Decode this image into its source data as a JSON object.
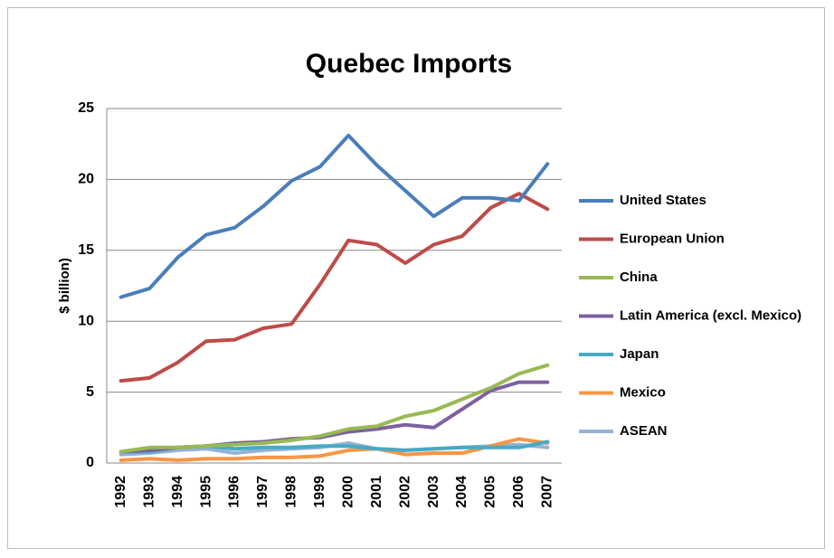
{
  "chart_data": {
    "type": "line",
    "title": "Quebec Imports",
    "y_label": "$ billion)",
    "categories": [
      "1992",
      "1993",
      "1994",
      "1995",
      "1996",
      "1997",
      "1998",
      "1999",
      "2000",
      "2001",
      "2002",
      "2003",
      "2004",
      "2005",
      "2006",
      "2007"
    ],
    "series": [
      {
        "name": "United States",
        "color": "#4a7ebb",
        "values": [
          11.7,
          12.3,
          14.5,
          16.1,
          16.6,
          18.1,
          19.9,
          20.9,
          23.1,
          21.0,
          19.2,
          17.4,
          18.7,
          18.7,
          18.5,
          21.1
        ]
      },
      {
        "name": "European Union",
        "color": "#be4b48",
        "values": [
          5.8,
          6.0,
          7.1,
          8.6,
          8.7,
          9.5,
          9.8,
          12.6,
          15.7,
          15.4,
          14.1,
          15.4,
          16.0,
          18.0,
          19.0,
          17.9
        ]
      },
      {
        "name": "China",
        "color": "#98b954",
        "values": [
          0.8,
          1.1,
          1.1,
          1.2,
          1.3,
          1.4,
          1.6,
          1.9,
          2.4,
          2.6,
          3.3,
          3.7,
          4.5,
          5.3,
          6.3,
          6.9
        ]
      },
      {
        "name": "Latin America (excl. Mexico)",
        "color": "#7d60a0",
        "values": [
          0.8,
          0.9,
          1.1,
          1.2,
          1.4,
          1.5,
          1.7,
          1.8,
          2.2,
          2.4,
          2.7,
          2.5,
          3.8,
          5.1,
          5.7,
          5.7
        ]
      },
      {
        "name": "Japan",
        "color": "#46aac5",
        "values": [
          0.8,
          0.8,
          1.1,
          1.2,
          1.0,
          1.1,
          1.1,
          1.2,
          1.2,
          1.0,
          0.9,
          1.0,
          1.1,
          1.1,
          1.1,
          1.5
        ]
      },
      {
        "name": "Mexico",
        "color": "#f79646",
        "values": [
          0.2,
          0.3,
          0.2,
          0.3,
          0.3,
          0.4,
          0.4,
          0.5,
          0.9,
          1.0,
          0.6,
          0.7,
          0.7,
          1.2,
          1.7,
          1.4
        ]
      },
      {
        "name": "ASEAN",
        "color": "#95b3d7",
        "values": [
          0.6,
          0.7,
          0.9,
          1.0,
          0.7,
          0.9,
          1.0,
          1.1,
          1.4,
          1.0,
          0.9,
          1.0,
          1.1,
          1.2,
          1.3,
          1.1
        ]
      }
    ],
    "ylim": [
      0,
      25
    ],
    "yticks": [
      0,
      5,
      10,
      15,
      20,
      25
    ],
    "grid": true,
    "legend": "right"
  }
}
